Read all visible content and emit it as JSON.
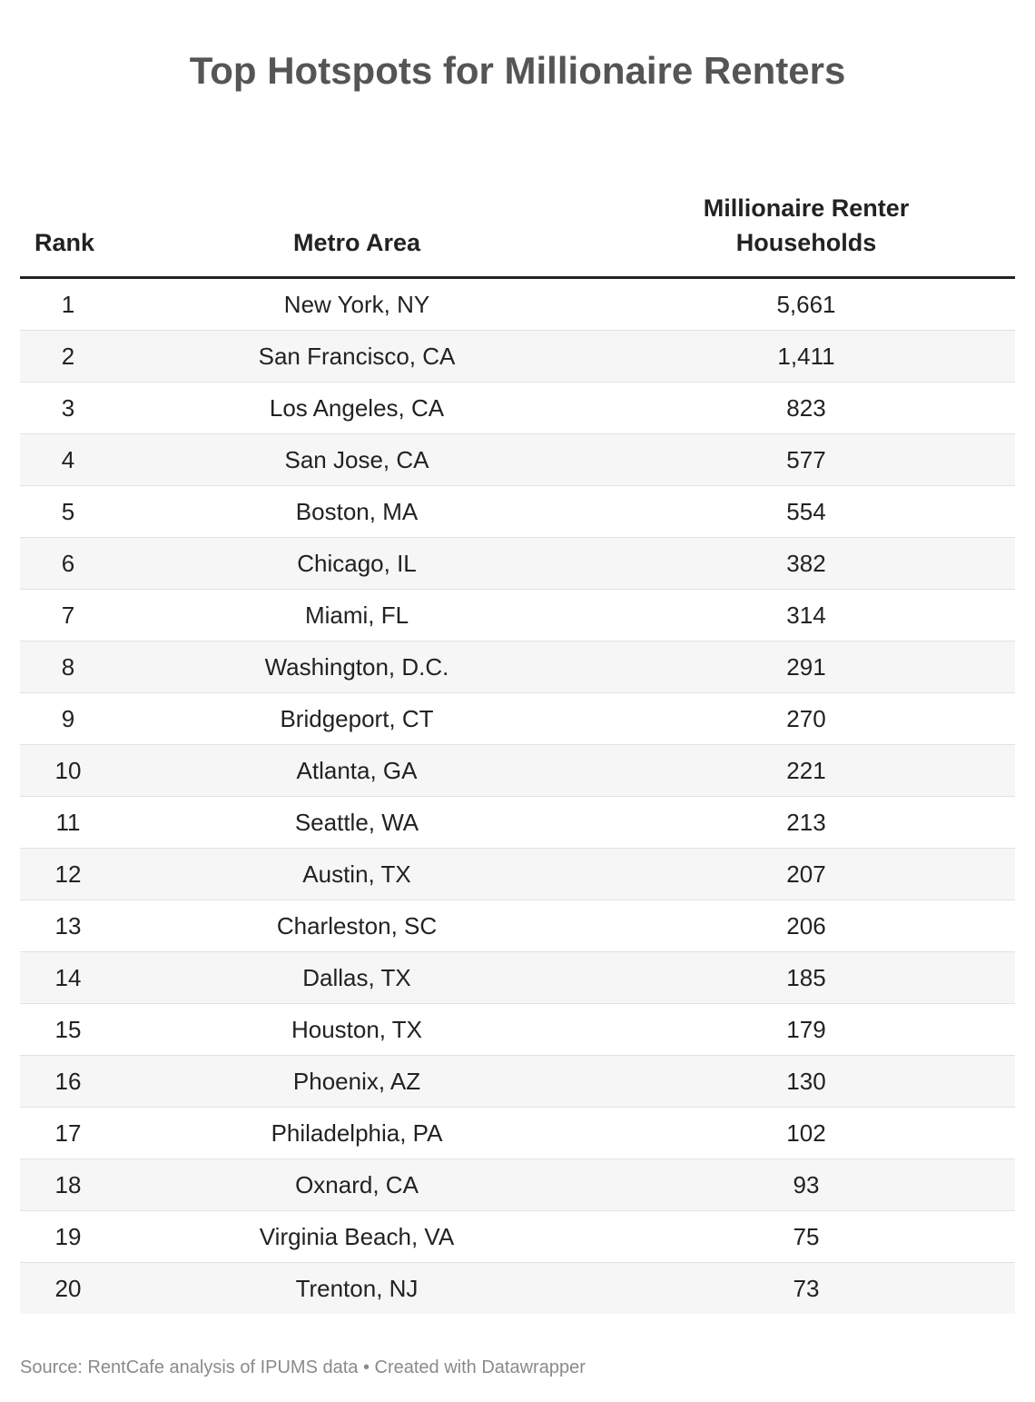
{
  "header": {
    "title": "Top Hotspots for Millionaire Renters"
  },
  "table": {
    "columns": [
      "Rank",
      "Metro Area",
      "Millionaire Renter Households"
    ],
    "rows": [
      [
        "1",
        "New York, NY",
        "5,661"
      ],
      [
        "2",
        "San Francisco, CA",
        "1,411"
      ],
      [
        "3",
        "Los Angeles, CA",
        "823"
      ],
      [
        "4",
        "San Jose, CA",
        "577"
      ],
      [
        "5",
        "Boston, MA",
        "554"
      ],
      [
        "6",
        "Chicago, IL",
        "382"
      ],
      [
        "7",
        "Miami, FL",
        "314"
      ],
      [
        "8",
        "Washington, D.C.",
        "291"
      ],
      [
        "9",
        "Bridgeport, CT",
        "270"
      ],
      [
        "10",
        "Atlanta, GA",
        "221"
      ],
      [
        "11",
        "Seattle, WA",
        "213"
      ],
      [
        "12",
        "Austin, TX",
        "207"
      ],
      [
        "13",
        "Charleston, SC",
        "206"
      ],
      [
        "14",
        "Dallas, TX",
        "185"
      ],
      [
        "15",
        "Houston, TX",
        "179"
      ],
      [
        "16",
        "Phoenix, AZ",
        "130"
      ],
      [
        "17",
        "Philadelphia, PA",
        "102"
      ],
      [
        "18",
        "Oxnard, CA",
        "93"
      ],
      [
        "19",
        "Virginia Beach, VA",
        "75"
      ],
      [
        "20",
        "Trenton, NJ",
        "73"
      ]
    ]
  },
  "footer": {
    "source": "Source: RentCafe analysis of IPUMS data • Created with Datawrapper"
  }
}
